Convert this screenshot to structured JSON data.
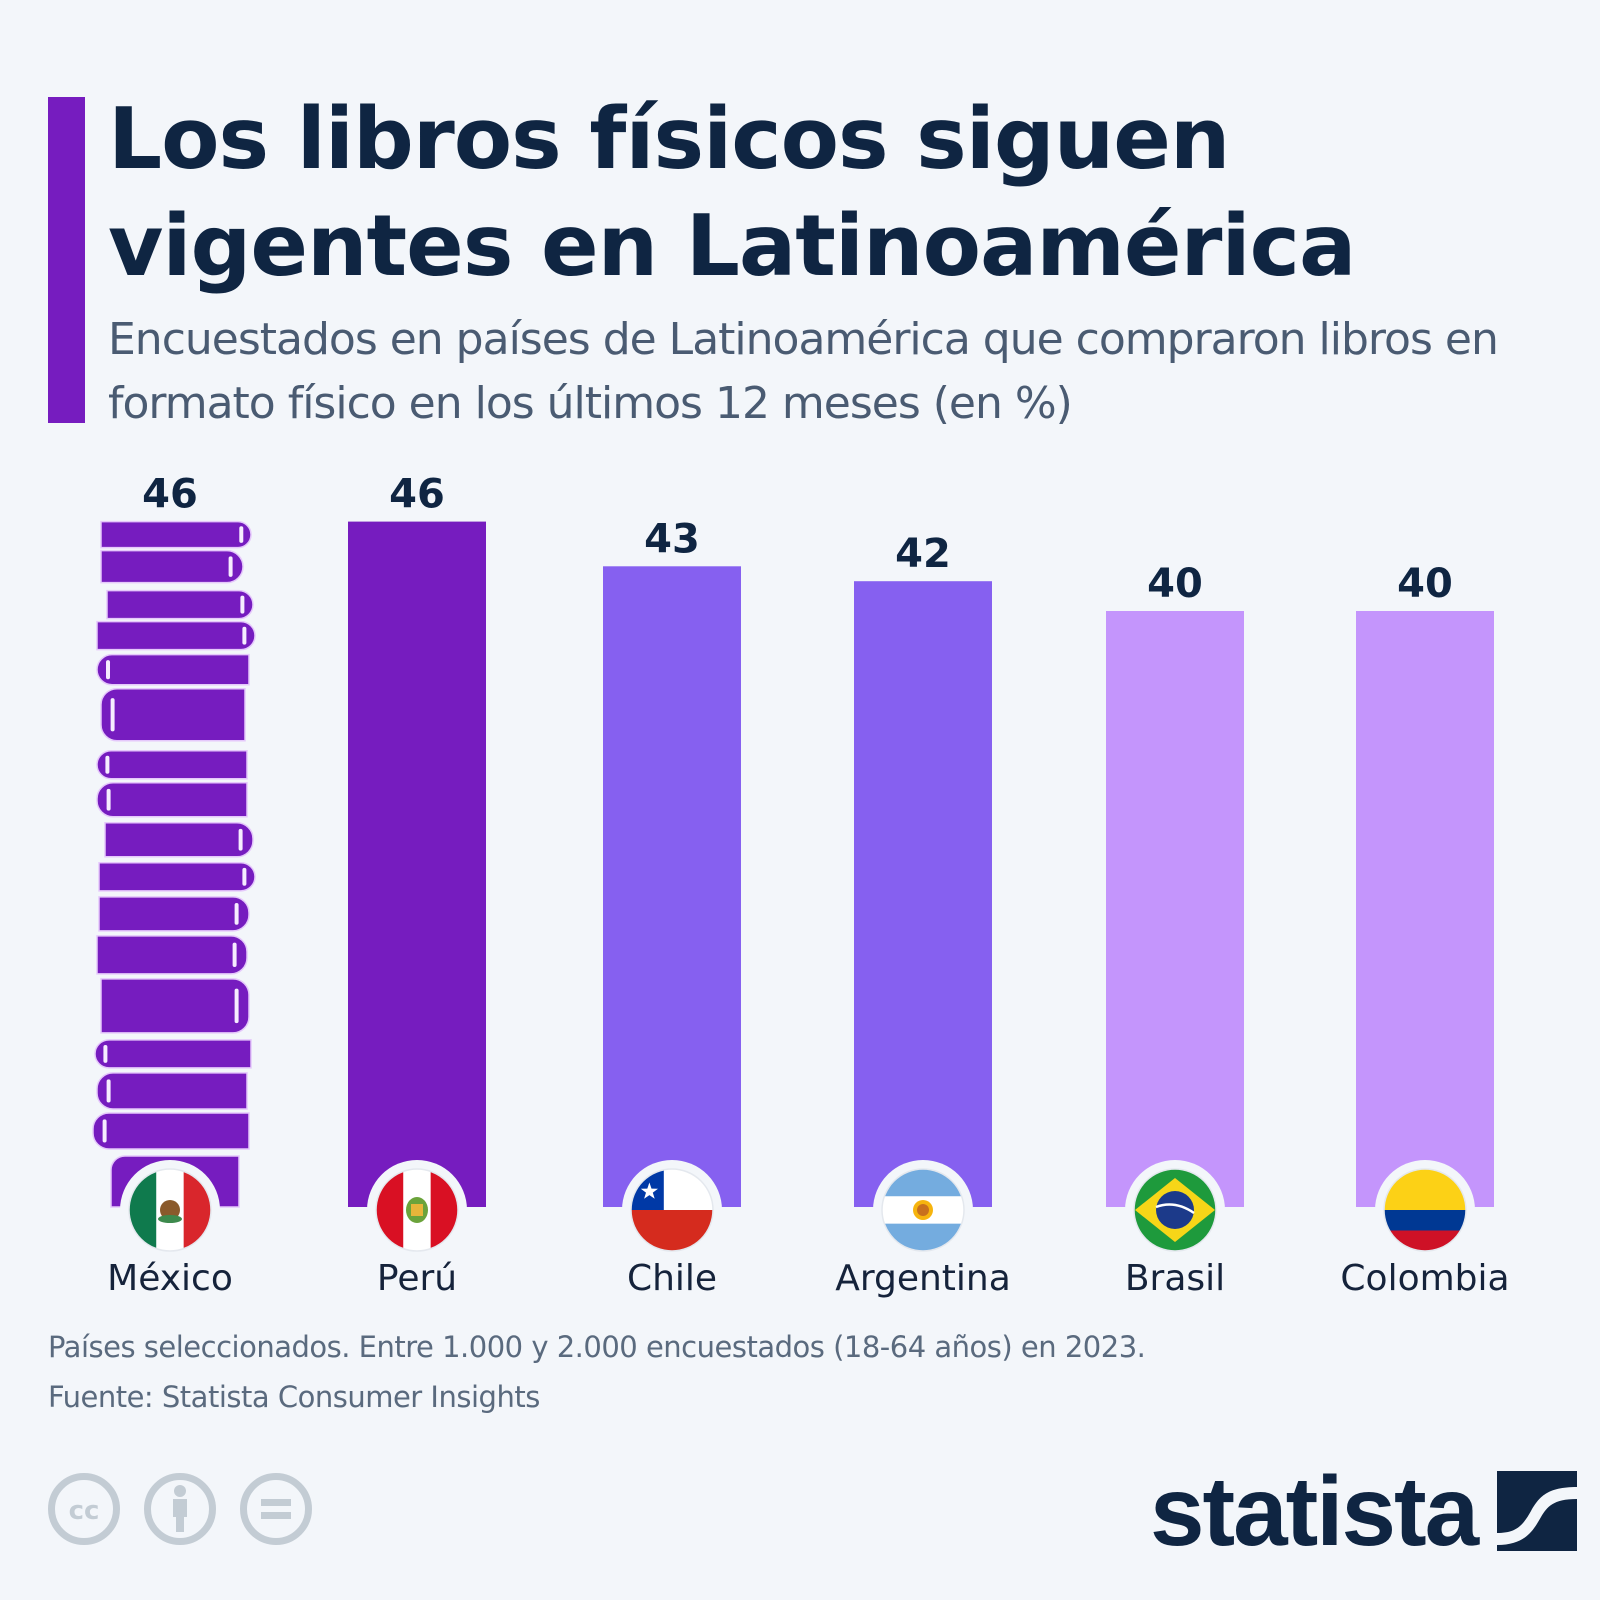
{
  "header": {
    "title": "Los libros físicos siguen vigentes en Latinoamérica",
    "subtitle": "Encuestados en países de Latinoamérica que compraron libros en formato físico en los últimos 12 meses (en %)"
  },
  "colors": {
    "accent": "#761cbf",
    "dark_purple": "#761cbf",
    "mid_purple": "#8660f0",
    "light_purple": "#c495fc",
    "text_dark": "#0f2542",
    "text_muted": "#5a6a7e",
    "background": "#f3f6fa"
  },
  "chart_data": {
    "type": "bar",
    "title": "Los libros físicos siguen vigentes en Latinoamérica",
    "subtitle": "Encuestados en países de Latinoamérica que compraron libros en formato físico en los últimos 12 meses (en %)",
    "categories": [
      "México",
      "Perú",
      "Chile",
      "Argentina",
      "Brasil",
      "Colombia"
    ],
    "values": [
      46,
      46,
      43,
      42,
      40,
      40
    ],
    "value_labels": [
      "46",
      "46",
      "43",
      "42",
      "40",
      "40"
    ],
    "bar_colors": [
      "#761cbf",
      "#761cbf",
      "#8660f0",
      "#8660f0",
      "#c495fc",
      "#c495fc"
    ],
    "highlight": {
      "category": "México",
      "style": "stack-of-books"
    },
    "flags": [
      "mexico-flag",
      "peru-flag",
      "chile-flag",
      "argentina-flag",
      "brazil-flag",
      "colombia-flag"
    ],
    "xlabel": "",
    "ylabel": "",
    "ylim": [
      0,
      46
    ],
    "grid": false,
    "legend": "none",
    "unit": "%"
  },
  "footer": {
    "note": "Países seleccionados. Entre 1.000 y 2.000 encuestados (18-64 años) en 2023.",
    "source": "Fuente: Statista Consumer Insights",
    "license_icons": [
      "cc-icon",
      "attribution-icon",
      "no-derivatives-icon"
    ],
    "brand": "statista"
  }
}
